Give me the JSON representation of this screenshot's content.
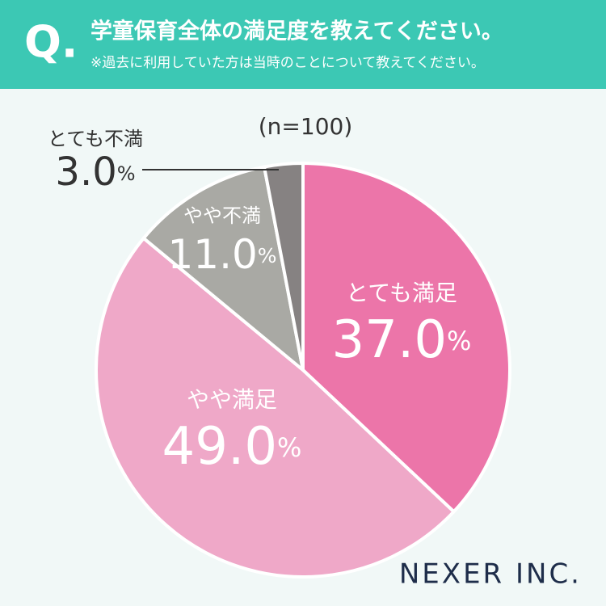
{
  "header": {
    "mark": "Q.",
    "title": "学童保育全体の満足度を教えてください。",
    "subtitle": "※過去に利用していた方は当時のことについて教えてください。"
  },
  "chart_data": {
    "type": "pie",
    "note": "(n=100)",
    "categories": [
      "とても満足",
      "やや満足",
      "やや不満",
      "とても不満"
    ],
    "values": [
      37,
      49,
      11,
      3
    ],
    "value_labels": [
      "37.0%",
      "49.0%",
      "11.0%",
      "3.0%"
    ],
    "colors": [
      "#ec75a9",
      "#efa8c8",
      "#a9a9a4",
      "#868282"
    ]
  },
  "brand": "NEXER INC."
}
